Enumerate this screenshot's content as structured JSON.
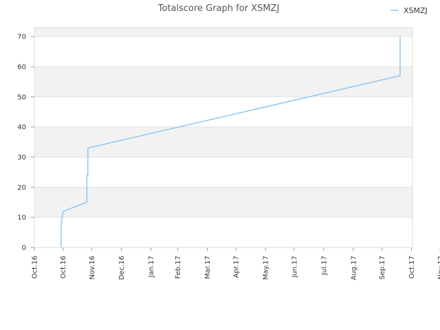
{
  "chart_data": {
    "type": "line",
    "title": "Totalscore Graph for XSMZJ",
    "xlabel": "",
    "ylabel": "",
    "x_range": [
      "2016-10-01",
      "2017-11-01"
    ],
    "ylim": [
      0,
      73
    ],
    "y_ticks": [
      "0",
      "10",
      "20",
      "30",
      "40",
      "50",
      "60",
      "70"
    ],
    "y_tick_values": [
      0,
      10,
      20,
      30,
      40,
      50,
      60,
      70
    ],
    "x_ticks": [
      "Oct.16",
      "Oct.16",
      "Nov.16",
      "Dec.16",
      "Jan.17",
      "Feb.17",
      "Mar.17",
      "Apr.17",
      "May.17",
      "Jun.17",
      "Jul.17",
      "Aug.17",
      "Sep.17",
      "Oct.17",
      "Nov.17"
    ],
    "x_tick_dates": [
      "2016-10-01",
      "2016-10-31",
      "2016-11-30",
      "2016-12-31",
      "2017-01-31",
      "2017-02-28",
      "2017-03-31",
      "2017-04-30",
      "2017-05-31",
      "2017-06-30",
      "2017-07-31",
      "2017-08-31",
      "2017-09-30",
      "2017-10-31",
      "2017-11-30"
    ],
    "grid": true,
    "legend_position": "top-right",
    "series": [
      {
        "name": "XSMZJ",
        "color": "#8ec8f0",
        "points": [
          [
            "2016-10-29",
            0
          ],
          [
            "2016-10-29",
            7
          ],
          [
            "2016-10-30",
            10
          ],
          [
            "2016-10-31",
            12
          ],
          [
            "2016-11-25",
            15
          ],
          [
            "2016-11-25",
            24
          ],
          [
            "2016-11-26",
            24
          ],
          [
            "2016-11-26",
            33
          ],
          [
            "2017-10-19",
            57
          ],
          [
            "2017-10-19",
            70
          ]
        ]
      }
    ]
  }
}
